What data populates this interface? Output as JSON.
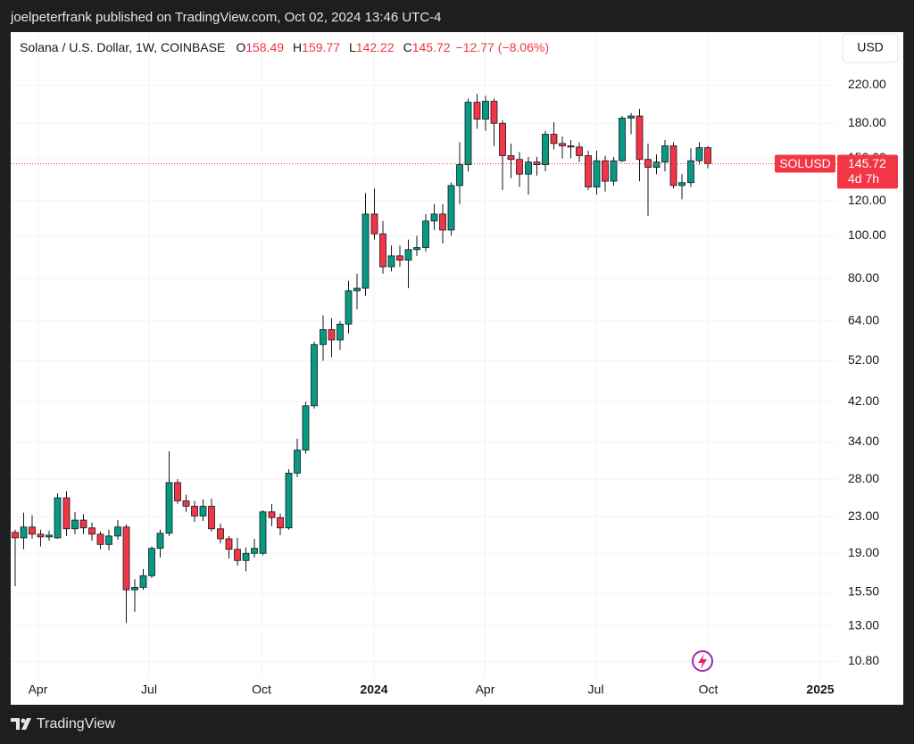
{
  "header": {
    "published": "joelpeterfrank published on TradingView.com, Oct 02, 2024 13:46 UTC-4"
  },
  "footer": {
    "brand": "TradingView"
  },
  "chart_data": {
    "type": "candlestick",
    "title": "Solana / U.S. Dollar, 1W, COINBASE",
    "legend_keys": [
      "O",
      "H",
      "L",
      "C"
    ],
    "change": {
      "value": -12.77,
      "label": "−12.77"
    },
    "change_pct": {
      "value": -8.06,
      "label": "(−8.06%)"
    },
    "currency": "USD",
    "symbol": "SOLUSD",
    "countdown": "4d 7h",
    "up_color": "#089981",
    "down_color": "#f23645",
    "log_scale": true,
    "grid": true,
    "xlim": [
      2023.186,
      2025.038
    ],
    "ylim": [
      9.9,
      290
    ],
    "xticks": [
      {
        "value": 2023.247,
        "label": "Apr"
      },
      {
        "value": 2023.496,
        "label": "Jul"
      },
      {
        "value": 2023.748,
        "label": "Oct"
      },
      2024,
      {
        "value": 2024.249,
        "label": "Apr"
      },
      {
        "value": 2024.497,
        "label": "Jul"
      },
      {
        "value": 2024.749,
        "label": "Oct"
      },
      2025
    ],
    "yticks": [
      {
        "value": 10.8,
        "label": "10.80"
      },
      {
        "value": 13,
        "label": "13.00"
      },
      {
        "value": 15.5,
        "label": "15.50"
      },
      {
        "value": 19,
        "label": "19.00"
      },
      {
        "value": 23,
        "label": "23.00"
      },
      {
        "value": 28,
        "label": "28.00"
      },
      {
        "value": 34,
        "label": "34.00"
      },
      {
        "value": 42,
        "label": "42.00"
      },
      {
        "value": 52,
        "label": "52.00"
      },
      {
        "value": 64,
        "label": "64.00"
      },
      {
        "value": 80,
        "label": "80.00"
      },
      {
        "value": 100,
        "label": "100.00"
      },
      {
        "value": 120,
        "label": "120.00"
      },
      {
        "value": 150,
        "label": "150.00"
      },
      {
        "value": 180,
        "label": "180.00"
      },
      {
        "value": 220,
        "label": "220.00"
      }
    ],
    "x": [
      2023.196,
      2023.215,
      2023.234,
      2023.253,
      2023.272,
      2023.291,
      2023.311,
      2023.33,
      2023.349,
      2023.368,
      2023.387,
      2023.406,
      2023.426,
      2023.445,
      2023.464,
      2023.483,
      2023.502,
      2023.521,
      2023.541,
      2023.56,
      2023.579,
      2023.598,
      2023.617,
      2023.636,
      2023.656,
      2023.675,
      2023.694,
      2023.713,
      2023.732,
      2023.751,
      2023.771,
      2023.79,
      2023.809,
      2023.828,
      2023.847,
      2023.866,
      2023.886,
      2023.905,
      2023.924,
      2023.943,
      2023.962,
      2023.981,
      2024.001,
      2024.02,
      2024.039,
      2024.058,
      2024.077,
      2024.096,
      2024.116,
      2024.135,
      2024.154,
      2024.173,
      2024.192,
      2024.211,
      2024.231,
      2024.25,
      2024.269,
      2024.288,
      2024.307,
      2024.326,
      2024.346,
      2024.365,
      2024.384,
      2024.403,
      2024.422,
      2024.441,
      2024.46,
      2024.48,
      2024.499,
      2024.518,
      2024.537,
      2024.556,
      2024.576,
      2024.595,
      2024.614,
      2024.633,
      2024.652,
      2024.671,
      2024.69,
      2024.71,
      2024.729,
      2024.748
    ],
    "open": [
      21.2,
      20.6,
      21.8,
      21,
      20.7,
      20.6,
      25.4,
      21.6,
      22.6,
      21.7,
      21,
      19.9,
      20.8,
      21.8,
      15.7,
      15.9,
      16.9,
      19.5,
      21.1,
      27.5,
      25,
      24.3,
      23.1,
      24.3,
      21.6,
      20.5,
      19.4,
      18.3,
      19,
      19,
      23.6,
      22.9,
      21.7,
      28.9,
      32.6,
      41.1,
      56.6,
      61.2,
      58,
      63,
      75,
      76,
      112,
      101,
      85,
      90,
      88,
      93,
      94,
      108,
      112,
      103,
      130,
      145,
      201,
      184,
      202,
      180,
      152,
      149,
      138,
      147,
      145,
      170,
      162,
      160,
      159,
      152,
      129,
      148,
      133,
      148,
      185,
      187,
      149,
      143,
      147,
      160,
      130,
      132,
      148,
      158.49
    ],
    "high": [
      21.5,
      23.5,
      23.2,
      21.5,
      21.4,
      26,
      26.3,
      23.6,
      23.3,
      22.3,
      21.3,
      21.5,
      22.6,
      22.1,
      16.6,
      17.5,
      19.7,
      21.5,
      32.4,
      28,
      25.8,
      25,
      25.2,
      25.3,
      22.2,
      20.8,
      20.6,
      19.6,
      20.5,
      23.8,
      24.6,
      23.4,
      29.5,
      34.6,
      42,
      57.5,
      66,
      65,
      64,
      79,
      82,
      125,
      128,
      108,
      95,
      95,
      98,
      100,
      112,
      118,
      118,
      132,
      163,
      205,
      210,
      208,
      205,
      183,
      162,
      155,
      151,
      151,
      173,
      181,
      168,
      165,
      163,
      156,
      156,
      152,
      151,
      187,
      190,
      194,
      162,
      153,
      165,
      163,
      138,
      158,
      163,
      159.77
    ],
    "low": [
      16,
      19.4,
      20.5,
      19.7,
      20.3,
      20.5,
      20.8,
      21,
      21,
      20.3,
      19.4,
      19.3,
      20.4,
      13.2,
      14,
      15.7,
      16.7,
      18.6,
      20.8,
      24.6,
      23.6,
      22.4,
      22.5,
      21.3,
      20,
      18.5,
      17.8,
      17.3,
      18.6,
      18.8,
      21.9,
      20.9,
      21.5,
      28.3,
      32,
      40.5,
      52,
      53,
      55,
      60,
      68,
      73,
      98,
      82,
      83,
      85,
      76,
      90,
      92,
      103,
      96,
      100,
      118,
      140,
      175,
      173,
      160,
      127,
      135,
      129,
      124,
      137,
      140,
      157,
      150,
      150,
      147,
      127,
      124,
      126,
      130,
      147,
      170,
      133,
      111,
      138,
      140,
      128,
      121,
      129,
      145,
      142.22
    ],
    "close": [
      20.6,
      21.8,
      21,
      20.7,
      20.9,
      25.4,
      21.6,
      22.6,
      21.7,
      21,
      19.9,
      20.8,
      21.8,
      15.7,
      15.9,
      16.9,
      19.5,
      21.1,
      27.5,
      25,
      24.3,
      23.1,
      24.3,
      21.6,
      20.5,
      19.4,
      18.3,
      19,
      19.5,
      23.6,
      22.9,
      21.7,
      28.9,
      32.6,
      41.1,
      56.6,
      61.2,
      58,
      63,
      75,
      76,
      112,
      101,
      85,
      90,
      88,
      93,
      94,
      108,
      112,
      103,
      130,
      145,
      201,
      184,
      202,
      180,
      152,
      149,
      138,
      147,
      145,
      170,
      162,
      160,
      159,
      152,
      129,
      148,
      133,
      148,
      185,
      187,
      149,
      143,
      147,
      160,
      130,
      132,
      148,
      158.49,
      145.72
    ]
  }
}
